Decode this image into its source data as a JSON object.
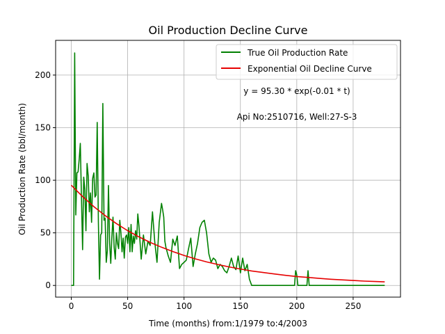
{
  "chart_data": {
    "type": "line",
    "title": "Oil Production Decline Curve",
    "xlabel": "Time (months) from:1/1979 to:4/2003",
    "ylabel": "Oil Production Rate (bbl/month)",
    "xlim": [
      -13.9,
      292
    ],
    "ylim": [
      -11.1,
      233
    ],
    "xticks": [
      0,
      50,
      100,
      150,
      200,
      250
    ],
    "yticks": [
      0,
      50,
      100,
      150,
      200
    ],
    "grid": true,
    "legend_position": "top-right",
    "annotations": [
      "y = 95.30 * exp(-0.01 * t)",
      "Api No:2510716, Well:27-S-3"
    ],
    "series": [
      {
        "name": "True Oil Production Rate",
        "color": "#008000",
        "x": [
          0,
          1,
          2,
          3,
          4,
          5,
          6,
          7,
          8,
          9,
          10,
          11,
          12,
          13,
          14,
          15,
          16,
          17,
          18,
          19,
          20,
          21,
          22,
          23,
          24,
          25,
          26,
          27,
          28,
          29,
          30,
          31,
          32,
          33,
          34,
          35,
          36,
          37,
          38,
          39,
          40,
          41,
          42,
          43,
          44,
          45,
          46,
          47,
          48,
          49,
          50,
          51,
          52,
          53,
          54,
          55,
          56,
          57,
          58,
          59,
          60,
          62,
          64,
          66,
          68,
          70,
          72,
          74,
          76,
          78,
          80,
          81,
          82,
          83,
          84,
          86,
          88,
          90,
          92,
          94,
          96,
          98,
          100,
          102,
          104,
          106,
          108,
          110,
          112,
          114,
          116,
          118,
          120,
          122,
          124,
          126,
          128,
          130,
          132,
          134,
          136,
          138,
          140,
          142,
          144,
          146,
          148,
          150,
          152,
          154,
          156,
          158,
          160,
          170,
          180,
          190,
          196,
          197,
          198,
          199,
          200,
          201,
          202,
          203,
          204,
          205,
          206,
          207,
          208,
          209,
          210,
          211,
          212,
          220,
          230,
          240,
          250,
          260,
          270,
          278
        ],
        "y": [
          0,
          0,
          0,
          221,
          67,
          107,
          108,
          120,
          135,
          85,
          34,
          103,
          91,
          52,
          116,
          104,
          70,
          88,
          60,
          102,
          107,
          84,
          86,
          155,
          60,
          6,
          48,
          50,
          173,
          62,
          64,
          22,
          33,
          95,
          40,
          21,
          46,
          65,
          36,
          25,
          50,
          40,
          35,
          62,
          50,
          32,
          45,
          26,
          46,
          48,
          40,
          55,
          32,
          58,
          32,
          47,
          40,
          52,
          44,
          68,
          57,
          25,
          48,
          30,
          42,
          38,
          70,
          42,
          22,
          60,
          78,
          72,
          65,
          42,
          36,
          28,
          22,
          44,
          38,
          47,
          16,
          20,
          22,
          24,
          35,
          45,
          18,
          30,
          40,
          55,
          60,
          62,
          50,
          30,
          22,
          26,
          24,
          16,
          20,
          18,
          14,
          12,
          18,
          26,
          18,
          15,
          28,
          12,
          26,
          14,
          20,
          6,
          0,
          0,
          0,
          0,
          0,
          0,
          0,
          14,
          10,
          0,
          0,
          0,
          0,
          0,
          0,
          0,
          0,
          0,
          14,
          0,
          0,
          0,
          0,
          0,
          0,
          0,
          0,
          0
        ]
      },
      {
        "name": "Exponential Oil Decline Curve",
        "color": "#e60000",
        "x": [
          0,
          10,
          20,
          30,
          40,
          50,
          60,
          70,
          80,
          90,
          100,
          110,
          120,
          130,
          140,
          150,
          160,
          170,
          180,
          190,
          200,
          210,
          220,
          230,
          240,
          250,
          260,
          270,
          278
        ],
        "y": [
          95.3,
          84.5,
          74.9,
          66.4,
          58.8,
          52.1,
          46.2,
          40.9,
          36.3,
          32.2,
          28.5,
          25.3,
          22.4,
          19.9,
          17.6,
          15.6,
          13.8,
          12.3,
          10.9,
          9.6,
          8.5,
          7.6,
          6.7,
          5.9,
          5.3,
          4.7,
          4.1,
          3.7,
          3.4
        ]
      }
    ]
  }
}
